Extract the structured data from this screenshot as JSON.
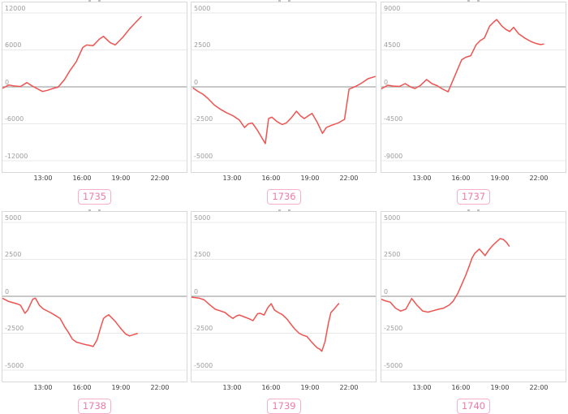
{
  "style": {
    "line_color": "#ef5350",
    "zero_line_color": "#a6a6a6",
    "grid_color": "#e9e9e9",
    "plot_border_color": "#d8d8d8",
    "y_label_color": "#9b9b9b",
    "x_label_color": "#3d3d3d",
    "badge_border_color": "#f9aecb",
    "badge_text_color": "#ee7ba6",
    "background": "#ffffff"
  },
  "chart_data": [
    {
      "type": "line",
      "badge_label": "1735",
      "ylim": [
        -12000,
        12000
      ],
      "y_ticks": [
        "12000",
        "6000",
        "0",
        "-6000",
        "-12000"
      ],
      "x_ticks": [
        "13:00",
        "16:00",
        "19:00",
        "22:00"
      ],
      "x_tick_hours": [
        13,
        16,
        19,
        22
      ],
      "xlim_hours": [
        9.8,
        24.0
      ],
      "grid": "horizontal",
      "legend": "none",
      "series": [
        {
          "name": "value",
          "points_hour_value": [
            [
              9.85,
              -200
            ],
            [
              10.3,
              300
            ],
            [
              10.7,
              150
            ],
            [
              11.2,
              50
            ],
            [
              11.7,
              700
            ],
            [
              12.1,
              150
            ],
            [
              12.9,
              -750
            ],
            [
              13.3,
              -550
            ],
            [
              13.8,
              -200
            ],
            [
              14.1,
              -50
            ],
            [
              14.6,
              1200
            ],
            [
              15.0,
              2600
            ],
            [
              15.5,
              4100
            ],
            [
              16.0,
              6400
            ],
            [
              16.3,
              6800
            ],
            [
              16.8,
              6700
            ],
            [
              17.3,
              7800
            ],
            [
              17.6,
              8200
            ],
            [
              18.1,
              7200
            ],
            [
              18.5,
              6800
            ],
            [
              19.1,
              8100
            ],
            [
              19.6,
              9400
            ],
            [
              20.0,
              10300
            ],
            [
              20.5,
              11400
            ]
          ]
        }
      ]
    },
    {
      "type": "line",
      "badge_label": "1736",
      "ylim": [
        -5000,
        5000
      ],
      "y_ticks": [
        "5000",
        "2500",
        "0",
        "-2500",
        "-5000"
      ],
      "x_ticks": [
        "13:00",
        "16:00",
        "19:00",
        "22:00"
      ],
      "x_tick_hours": [
        13,
        16,
        19,
        22
      ],
      "xlim_hours": [
        9.8,
        24.0
      ],
      "grid": "horizontal",
      "legend": "none",
      "series": [
        {
          "name": "value",
          "points_hour_value": [
            [
              9.95,
              -80
            ],
            [
              10.3,
              -300
            ],
            [
              10.7,
              -500
            ],
            [
              11.1,
              -800
            ],
            [
              11.6,
              -1250
            ],
            [
              12.1,
              -1550
            ],
            [
              12.5,
              -1750
            ],
            [
              13.0,
              -1950
            ],
            [
              13.5,
              -2250
            ],
            [
              13.9,
              -2750
            ],
            [
              14.2,
              -2500
            ],
            [
              14.5,
              -2450
            ],
            [
              14.9,
              -2950
            ],
            [
              15.2,
              -3400
            ],
            [
              15.5,
              -3840
            ],
            [
              15.75,
              -2150
            ],
            [
              16.0,
              -2050
            ],
            [
              16.4,
              -2350
            ],
            [
              16.8,
              -2550
            ],
            [
              17.1,
              -2450
            ],
            [
              17.5,
              -2100
            ],
            [
              17.9,
              -1650
            ],
            [
              18.2,
              -1950
            ],
            [
              18.5,
              -2150
            ],
            [
              18.9,
              -1900
            ],
            [
              19.1,
              -1800
            ],
            [
              19.5,
              -2400
            ],
            [
              19.9,
              -3150
            ],
            [
              20.2,
              -2750
            ],
            [
              20.6,
              -2600
            ],
            [
              21.1,
              -2450
            ],
            [
              21.6,
              -2200
            ],
            [
              21.95,
              -150
            ],
            [
              22.1,
              -100
            ],
            [
              22.5,
              50
            ],
            [
              23.0,
              300
            ],
            [
              23.4,
              550
            ],
            [
              23.95,
              700
            ]
          ]
        }
      ]
    },
    {
      "type": "line",
      "badge_label": "1737",
      "ylim": [
        -9000,
        9000
      ],
      "y_ticks": [
        "9000",
        "4500",
        "0",
        "-4500",
        "-9000"
      ],
      "x_ticks": [
        "13:00",
        "16:00",
        "19:00",
        "22:00"
      ],
      "x_tick_hours": [
        13,
        16,
        19,
        22
      ],
      "xlim_hours": [
        9.8,
        24.0
      ],
      "grid": "horizontal",
      "legend": "none",
      "series": [
        {
          "name": "value",
          "points_hour_value": [
            [
              9.8,
              -250
            ],
            [
              10.3,
              200
            ],
            [
              10.7,
              100
            ],
            [
              11.2,
              50
            ],
            [
              11.65,
              400
            ],
            [
              12.05,
              0
            ],
            [
              12.4,
              -200
            ],
            [
              12.8,
              150
            ],
            [
              13.3,
              900
            ],
            [
              13.7,
              400
            ],
            [
              14.1,
              150
            ],
            [
              14.5,
              -250
            ],
            [
              14.95,
              -600
            ],
            [
              15.3,
              700
            ],
            [
              15.7,
              2200
            ],
            [
              16.0,
              3300
            ],
            [
              16.3,
              3600
            ],
            [
              16.7,
              3800
            ],
            [
              17.1,
              5100
            ],
            [
              17.4,
              5600
            ],
            [
              17.75,
              5950
            ],
            [
              18.15,
              7400
            ],
            [
              18.5,
              7950
            ],
            [
              18.7,
              8200
            ],
            [
              19.1,
              7400
            ],
            [
              19.4,
              7000
            ],
            [
              19.7,
              6750
            ],
            [
              20.0,
              7250
            ],
            [
              20.4,
              6450
            ],
            [
              20.85,
              5950
            ],
            [
              21.3,
              5550
            ],
            [
              21.7,
              5300
            ],
            [
              22.05,
              5150
            ],
            [
              22.3,
              5200
            ]
          ]
        }
      ]
    },
    {
      "type": "line",
      "badge_label": "1738",
      "ylim": [
        -5000,
        5000
      ],
      "y_ticks": [
        "5000",
        "2500",
        "0",
        "-2500",
        "-5000"
      ],
      "x_ticks": [
        "13:00",
        "16:00",
        "19:00",
        "22:00"
      ],
      "x_tick_hours": [
        13,
        16,
        19,
        22
      ],
      "xlim_hours": [
        9.8,
        24.0
      ],
      "grid": "horizontal",
      "legend": "none",
      "series": [
        {
          "name": "value",
          "points_hour_value": [
            [
              9.85,
              -150
            ],
            [
              10.3,
              -350
            ],
            [
              10.9,
              -500
            ],
            [
              11.2,
              -600
            ],
            [
              11.55,
              -1150
            ],
            [
              11.75,
              -950
            ],
            [
              12.15,
              -200
            ],
            [
              12.35,
              -120
            ],
            [
              12.65,
              -600
            ],
            [
              12.95,
              -850
            ],
            [
              13.5,
              -1100
            ],
            [
              13.9,
              -1300
            ],
            [
              14.25,
              -1500
            ],
            [
              14.6,
              -2050
            ],
            [
              14.9,
              -2450
            ],
            [
              15.2,
              -2900
            ],
            [
              15.5,
              -3100
            ],
            [
              15.9,
              -3200
            ],
            [
              16.2,
              -3270
            ],
            [
              16.5,
              -3320
            ],
            [
              16.8,
              -3400
            ],
            [
              17.1,
              -2950
            ],
            [
              17.4,
              -2050
            ],
            [
              17.6,
              -1500
            ],
            [
              17.8,
              -1350
            ],
            [
              18.0,
              -1250
            ],
            [
              18.5,
              -1700
            ],
            [
              18.9,
              -2150
            ],
            [
              19.3,
              -2550
            ],
            [
              19.6,
              -2680
            ],
            [
              19.9,
              -2600
            ],
            [
              20.2,
              -2520
            ]
          ]
        }
      ]
    },
    {
      "type": "line",
      "badge_label": "1739",
      "ylim": [
        -5000,
        5000
      ],
      "y_ticks": [
        "5000",
        "2500",
        "0",
        "-2500",
        "-5000"
      ],
      "x_ticks": [
        "13:00",
        "16:00",
        "19:00",
        "22:00"
      ],
      "x_tick_hours": [
        13,
        16,
        19,
        22
      ],
      "xlim_hours": [
        9.8,
        24.0
      ],
      "grid": "horizontal",
      "legend": "none",
      "series": [
        {
          "name": "value",
          "points_hour_value": [
            [
              9.8,
              -60
            ],
            [
              10.4,
              -120
            ],
            [
              10.8,
              -250
            ],
            [
              11.25,
              -600
            ],
            [
              11.65,
              -880
            ],
            [
              12.0,
              -980
            ],
            [
              12.4,
              -1100
            ],
            [
              12.7,
              -1320
            ],
            [
              13.0,
              -1500
            ],
            [
              13.3,
              -1320
            ],
            [
              13.5,
              -1270
            ],
            [
              13.9,
              -1400
            ],
            [
              14.25,
              -1520
            ],
            [
              14.55,
              -1650
            ],
            [
              14.9,
              -1180
            ],
            [
              15.1,
              -1150
            ],
            [
              15.4,
              -1270
            ],
            [
              15.7,
              -750
            ],
            [
              15.95,
              -500
            ],
            [
              16.2,
              -930
            ],
            [
              16.5,
              -1100
            ],
            [
              16.8,
              -1230
            ],
            [
              17.15,
              -1520
            ],
            [
              17.45,
              -1870
            ],
            [
              17.75,
              -2200
            ],
            [
              18.1,
              -2500
            ],
            [
              18.4,
              -2630
            ],
            [
              18.7,
              -2720
            ],
            [
              19.0,
              -3030
            ],
            [
              19.3,
              -3320
            ],
            [
              19.5,
              -3490
            ],
            [
              19.7,
              -3580
            ],
            [
              19.85,
              -3720
            ],
            [
              20.1,
              -3060
            ],
            [
              20.35,
              -1850
            ],
            [
              20.55,
              -1100
            ],
            [
              20.75,
              -920
            ],
            [
              21.0,
              -650
            ],
            [
              21.15,
              -500
            ]
          ]
        }
      ]
    },
    {
      "type": "line",
      "badge_label": "1740",
      "ylim": [
        -5000,
        5000
      ],
      "y_ticks": [
        "5000",
        "2500",
        "0",
        "-2500",
        "-5000"
      ],
      "x_ticks": [
        "13:00",
        "16:00",
        "19:00",
        "22:00"
      ],
      "x_tick_hours": [
        13,
        16,
        19,
        22
      ],
      "xlim_hours": [
        9.8,
        24.0
      ],
      "grid": "horizontal",
      "legend": "none",
      "series": [
        {
          "name": "value",
          "points_hour_value": [
            [
              9.8,
              -200
            ],
            [
              10.1,
              -300
            ],
            [
              10.5,
              -400
            ],
            [
              10.9,
              -800
            ],
            [
              11.3,
              -1000
            ],
            [
              11.7,
              -870
            ],
            [
              12.15,
              -150
            ],
            [
              12.55,
              -600
            ],
            [
              13.0,
              -1000
            ],
            [
              13.4,
              -1070
            ],
            [
              13.8,
              -980
            ],
            [
              14.2,
              -880
            ],
            [
              14.6,
              -800
            ],
            [
              15.05,
              -580
            ],
            [
              15.35,
              -320
            ],
            [
              15.7,
              200
            ],
            [
              16.0,
              800
            ],
            [
              16.3,
              1400
            ],
            [
              16.6,
              2100
            ],
            [
              16.8,
              2600
            ],
            [
              17.0,
              2900
            ],
            [
              17.35,
              3200
            ],
            [
              17.6,
              2950
            ],
            [
              17.8,
              2750
            ],
            [
              18.1,
              3150
            ],
            [
              18.4,
              3450
            ],
            [
              18.7,
              3700
            ],
            [
              18.95,
              3900
            ],
            [
              19.2,
              3850
            ],
            [
              19.45,
              3650
            ],
            [
              19.65,
              3400
            ]
          ]
        }
      ]
    }
  ]
}
